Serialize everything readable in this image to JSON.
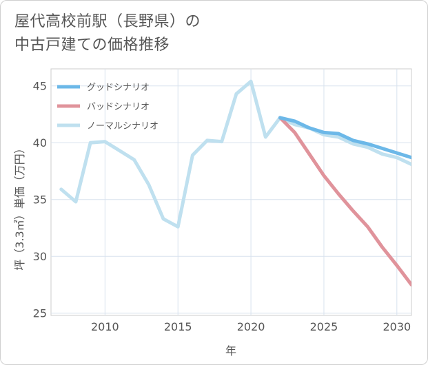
{
  "title": {
    "line1": "屋代高校前駅（長野県）の",
    "line2": "中古戸建ての価格推移"
  },
  "chart_data": {
    "type": "line",
    "title": "屋代高校前駅（長野県）の中古戸建ての価格推移",
    "xlabel": "年",
    "ylabel": "坪（3.3㎡）単価（万円）",
    "xlim": [
      2006.3,
      2031
    ],
    "ylim": [
      24.8,
      46.5
    ],
    "xticks": [
      2010,
      2015,
      2020,
      2025,
      2030
    ],
    "yticks": [
      25,
      30,
      35,
      40,
      45
    ],
    "grid": true,
    "legend_position": "top-left",
    "series": [
      {
        "name": "グッドシナリオ",
        "color": "#6cb8e8",
        "x": [
          2022,
          2023,
          2024,
          2025,
          2026,
          2027,
          2028,
          2029,
          2030,
          2031
        ],
        "y": [
          42.2,
          41.9,
          41.3,
          40.9,
          40.8,
          40.2,
          39.9,
          39.5,
          39.1,
          38.7
        ]
      },
      {
        "name": "バッドシナリオ",
        "color": "#e0939b",
        "x": [
          2022,
          2023,
          2024,
          2025,
          2026,
          2027,
          2028,
          2029,
          2030,
          2031
        ],
        "y": [
          42.2,
          40.9,
          39.0,
          37.1,
          35.5,
          34.0,
          32.6,
          30.8,
          29.2,
          27.5
        ]
      },
      {
        "name": "ノーマルシナリオ",
        "color": "#bfe0ef",
        "x": [
          2007,
          2008,
          2009,
          2010,
          2011,
          2012,
          2013,
          2014,
          2015,
          2016,
          2017,
          2018,
          2019,
          2020,
          2021,
          2022,
          2023,
          2024,
          2025,
          2026,
          2027,
          2028,
          2029,
          2030,
          2031
        ],
        "y": [
          35.9,
          34.8,
          40.0,
          40.1,
          39.3,
          38.5,
          36.3,
          33.3,
          32.6,
          38.9,
          40.2,
          40.1,
          44.3,
          45.4,
          40.5,
          42.2,
          41.6,
          41.3,
          40.7,
          40.5,
          39.9,
          39.6,
          39.0,
          38.7,
          38.1
        ]
      }
    ]
  }
}
